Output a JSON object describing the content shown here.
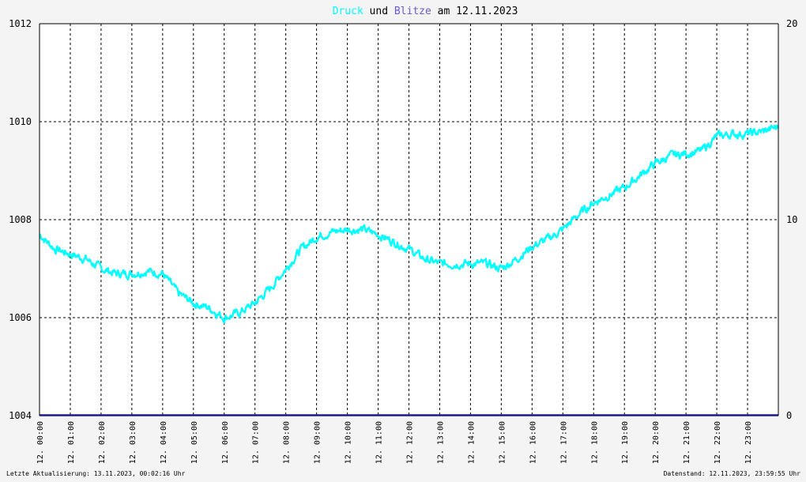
{
  "chart_data": {
    "type": "line",
    "title": {
      "parts": [
        {
          "text": "Druck",
          "color": "#00ffff"
        },
        {
          "text": " und ",
          "color": "#000000"
        },
        {
          "text": "Blitze",
          "color": "#6b5acd"
        },
        {
          "text": " am 12.11.2023",
          "color": "#000000"
        }
      ]
    },
    "x_ticks": [
      "12. 00:00",
      "12. 01:00",
      "12. 02:00",
      "12. 03:00",
      "12. 04:00",
      "12. 05:00",
      "12. 06:00",
      "12. 07:00",
      "12. 08:00",
      "12. 09:00",
      "12. 10:00",
      "12. 11:00",
      "12. 12:00",
      "12. 13:00",
      "12. 14:00",
      "12. 15:00",
      "12. 16:00",
      "12. 17:00",
      "12. 18:00",
      "12. 19:00",
      "12. 20:00",
      "12. 21:00",
      "12. 22:00",
      "12. 23:00"
    ],
    "x_range_hours": [
      0,
      24
    ],
    "y_left": {
      "range": [
        1004,
        1012
      ],
      "ticks": [
        "1004",
        "1006",
        "1008",
        "1010",
        "1012"
      ]
    },
    "y_right": {
      "range": [
        0,
        20
      ],
      "ticks": [
        "0",
        "10",
        "20"
      ]
    },
    "grid": true,
    "series": [
      {
        "name": "Druck",
        "axis": "left",
        "color": "#00ffff",
        "x_hours": [
          0,
          0.5,
          1,
          1.5,
          2,
          2.5,
          3,
          3.5,
          4,
          4.5,
          5,
          5.5,
          6,
          6.5,
          7,
          7.5,
          8,
          8.5,
          9,
          9.5,
          10,
          10.5,
          11,
          11.5,
          12,
          12.5,
          13,
          13.5,
          14,
          14.5,
          15,
          15.5,
          16,
          16.5,
          17,
          17.5,
          18,
          18.5,
          19,
          19.5,
          20,
          20.5,
          21,
          21.5,
          22,
          22.5,
          23,
          23.5,
          24
        ],
        "values": [
          1007.7,
          1007.4,
          1007.3,
          1007.2,
          1007.0,
          1006.9,
          1006.9,
          1006.95,
          1006.9,
          1006.5,
          1006.3,
          1006.2,
          1006.0,
          1006.1,
          1006.3,
          1006.6,
          1007.0,
          1007.4,
          1007.65,
          1007.75,
          1007.8,
          1007.8,
          1007.7,
          1007.55,
          1007.4,
          1007.2,
          1007.1,
          1007.1,
          1007.1,
          1007.1,
          1007.0,
          1007.2,
          1007.45,
          1007.6,
          1007.8,
          1008.1,
          1008.35,
          1008.5,
          1008.65,
          1008.9,
          1009.15,
          1009.3,
          1009.35,
          1009.4,
          1009.7,
          1009.75,
          1009.75,
          1009.8,
          1009.9
        ]
      },
      {
        "name": "Blitze",
        "axis": "right",
        "color": "#1a1a8a",
        "x_hours": [
          0,
          24
        ],
        "values": [
          0,
          0
        ]
      }
    ]
  },
  "footer": {
    "left": "Letzte Aktualisierung: 13.11.2023, 00:02:16 Uhr",
    "right": "Datenstand: 12.11.2023, 23:59:55 Uhr"
  }
}
